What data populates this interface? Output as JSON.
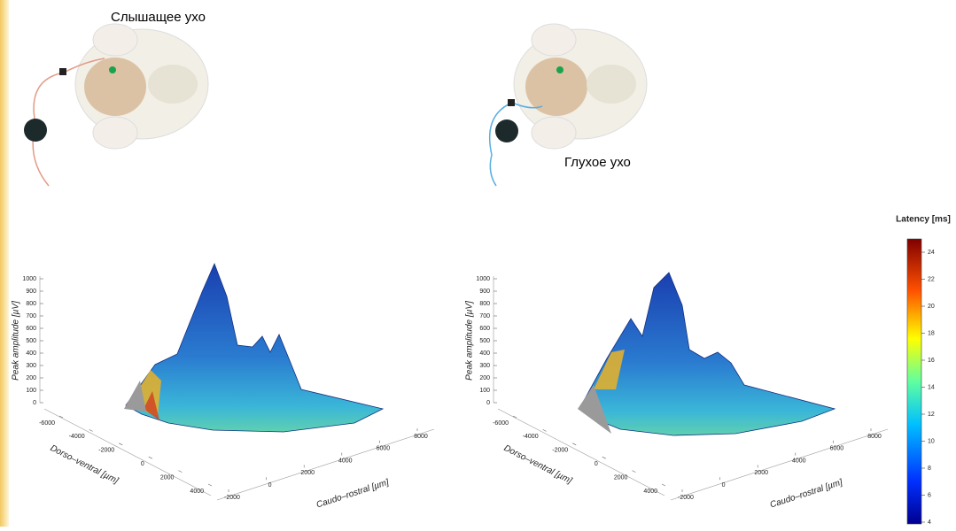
{
  "panels": [
    {
      "caption": "Слышащее ухо"
    },
    {
      "caption": "Глухое ухо"
    }
  ],
  "plots": [
    {
      "z_label": "Peak amplitude [µV]",
      "z_ticks": [
        0,
        100,
        200,
        300,
        400,
        500,
        600,
        700,
        800,
        900,
        1000
      ],
      "y_label": "Dorso–ventral [µm]",
      "y_ticks": [
        -6000,
        -4000,
        -2000,
        0,
        2000,
        4000
      ],
      "x_label": "Caudo–rostral [µm]",
      "x_ticks": [
        -2000,
        0,
        2000,
        4000,
        6000,
        8000
      ]
    },
    {
      "z_label": "Peak amplitude [µV]",
      "z_ticks": [
        0,
        100,
        200,
        300,
        400,
        500,
        600,
        700,
        800,
        900,
        1000
      ],
      "y_label": "Dorso–ventral [µm]",
      "y_ticks": [
        -6000,
        -4000,
        -2000,
        0,
        2000,
        4000
      ],
      "x_label": "Caudo–rostral [µm]",
      "x_ticks": [
        -2000,
        0,
        2000,
        4000,
        6000,
        8000
      ]
    }
  ],
  "colorbar": {
    "title": "Latency [ms]",
    "ticks": [
      4,
      6,
      8,
      10,
      12,
      14,
      16,
      18,
      20,
      22,
      24
    ]
  }
}
